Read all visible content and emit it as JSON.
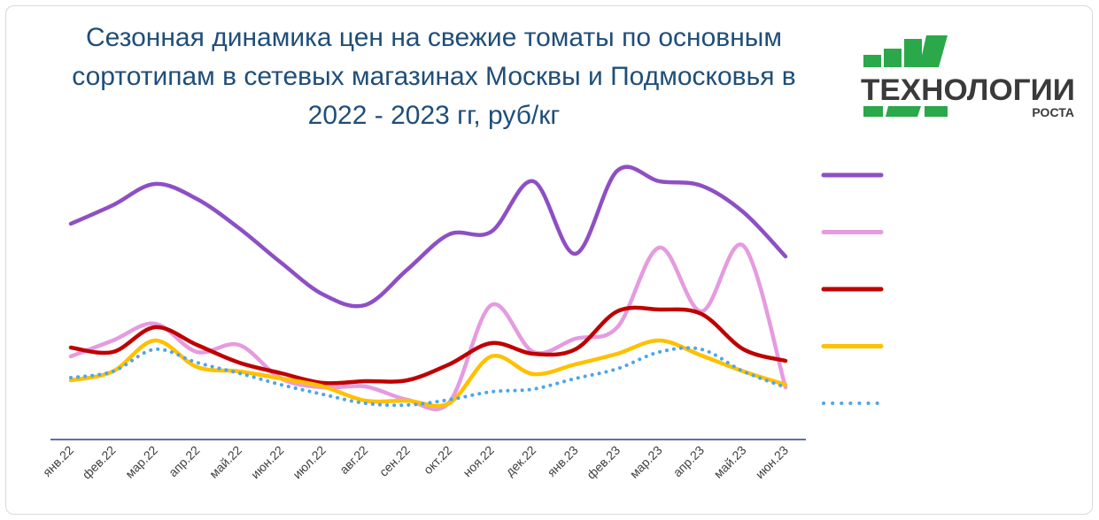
{
  "chart_data": {
    "type": "line",
    "title": [
      "Сезонная динамика цен на свежие томаты по основным",
      "сортотипам в сетевых магазинах Москвы и Подмосковья в",
      "2022 - 2023 гг, руб/кг"
    ],
    "categories": [
      "янв.22",
      "фев.22",
      "мар.22",
      "апр.22",
      "май.22",
      "июн.22",
      "июл.22",
      "авг.22",
      "сен.22",
      "окт.22",
      "ноя.22",
      "дек.22",
      "янв.23",
      "фев.23",
      "мар.23",
      "апр.23",
      "май.23",
      "июн.23"
    ],
    "ylim": [
      0,
      320
    ],
    "series": [
      {
        "color": "#8e4fc4",
        "values": [
          244,
          265,
          289,
          272,
          239,
          200,
          164,
          152,
          192,
          232,
          235,
          292,
          210,
          304,
          292,
          287,
          257,
          207
        ]
      },
      {
        "color": "#e59be0",
        "values": [
          94,
          112,
          131,
          99,
          107,
          69,
          59,
          60,
          45,
          42,
          152,
          99,
          114,
          127,
          217,
          145,
          219,
          59
        ]
      },
      {
        "color": "#c00000",
        "values": [
          104,
          99,
          127,
          107,
          87,
          75,
          64,
          66,
          67,
          85,
          109,
          97,
          102,
          145,
          147,
          142,
          102,
          89
        ]
      },
      {
        "color": "#ffc000",
        "values": [
          67,
          77,
          112,
          82,
          77,
          69,
          60,
          44,
          44,
          41,
          94,
          74,
          85,
          97,
          112,
          95,
          77,
          62
        ]
      },
      {
        "color": "#4da6e8",
        "dotted": true,
        "values": [
          70,
          77,
          102,
          87,
          75,
          62,
          51,
          41,
          39,
          45,
          54,
          57,
          69,
          80,
          99,
          102,
          77,
          59
        ]
      }
    ]
  },
  "logo": {
    "text": "ТЕХНОЛОГИИ",
    "subtext": "РОСТА"
  }
}
